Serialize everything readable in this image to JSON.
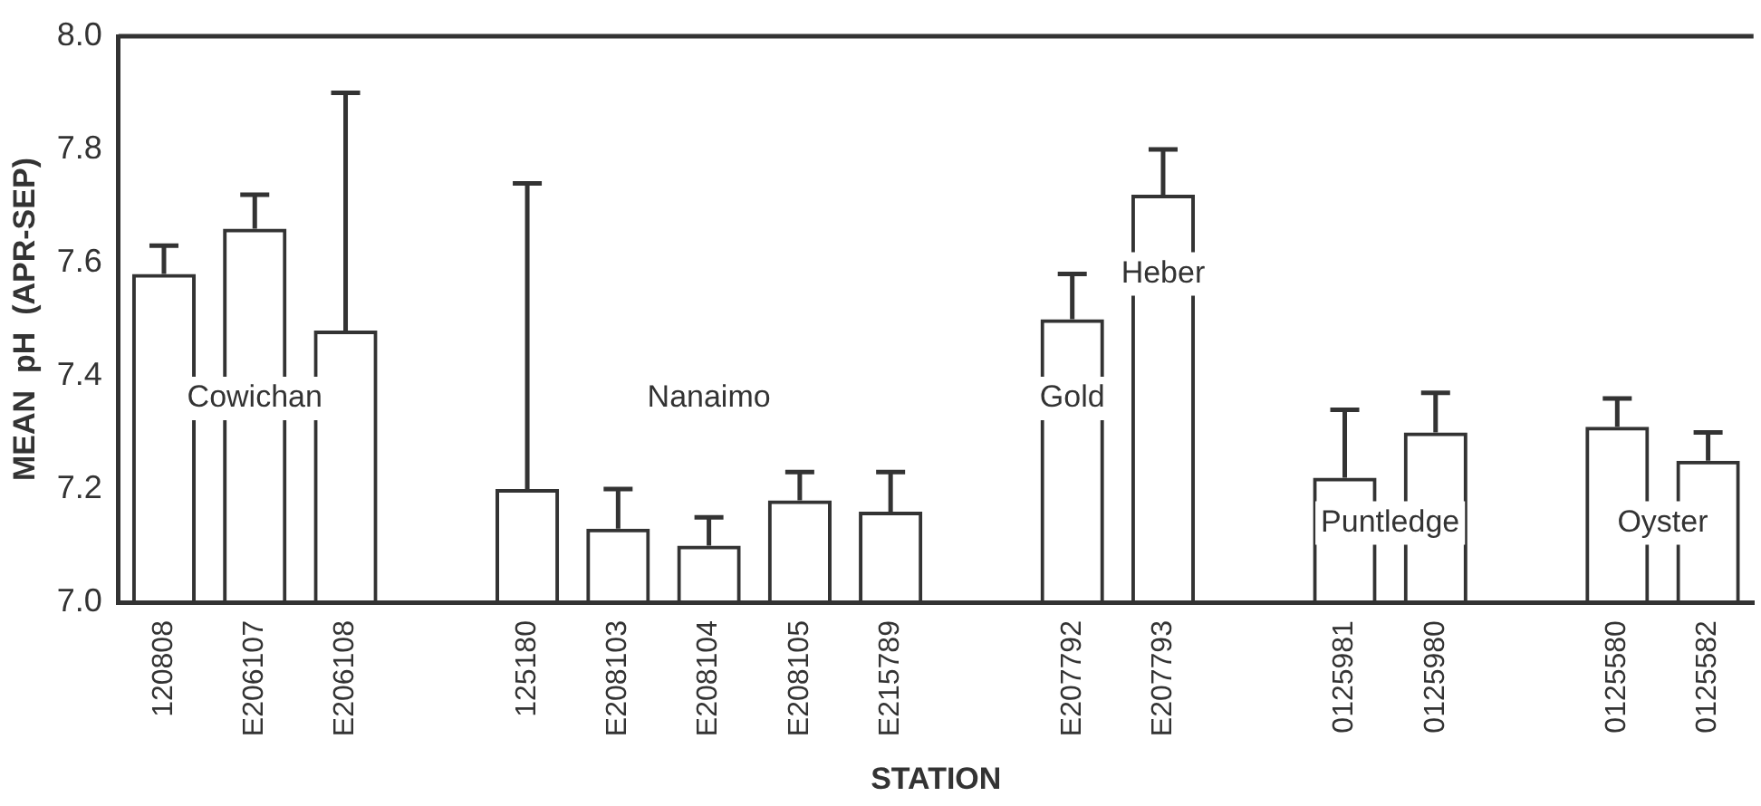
{
  "chart_data": {
    "type": "bar",
    "xlabel": "STATION",
    "ylabel": "MEAN  pH  (APR-SEP)",
    "categories": [
      "120808",
      "E206107",
      "E206108",
      null,
      "125180",
      "E208103",
      "E208104",
      "E208105",
      "E215789",
      null,
      "E207792",
      "E207793",
      null,
      "0125981",
      "0125980",
      null,
      "0125580",
      "0125582"
    ],
    "values": [
      7.58,
      7.66,
      7.48,
      null,
      7.2,
      7.13,
      7.1,
      7.18,
      7.16,
      null,
      7.5,
      7.72,
      null,
      7.22,
      7.3,
      null,
      7.31,
      7.25
    ],
    "errors": [
      [
        7.58,
        7.63
      ],
      [
        7.66,
        7.72
      ],
      [
        7.48,
        7.9
      ],
      null,
      [
        7.2,
        7.74
      ],
      [
        7.13,
        7.2
      ],
      [
        7.1,
        7.15
      ],
      [
        7.18,
        7.23
      ],
      [
        7.16,
        7.23
      ],
      null,
      [
        7.5,
        7.58
      ],
      [
        7.72,
        7.8
      ],
      null,
      [
        7.22,
        7.34
      ],
      [
        7.3,
        7.37
      ],
      null,
      [
        7.31,
        7.36
      ],
      [
        7.25,
        7.3
      ]
    ],
    "color": "#333333",
    "ylim": [
      7,
      8
    ],
    "yticks": [
      {
        "value": 7,
        "label": "7.0"
      },
      7.2,
      7.4,
      7.6,
      7.8,
      {
        "value": 8,
        "label": "8.0"
      }
    ],
    "grid": false,
    "legend": false,
    "annotations": [
      "Cowichan",
      "Nanaimo",
      "Gold",
      "Heber",
      "Puntledge",
      "Oyster"
    ]
  }
}
